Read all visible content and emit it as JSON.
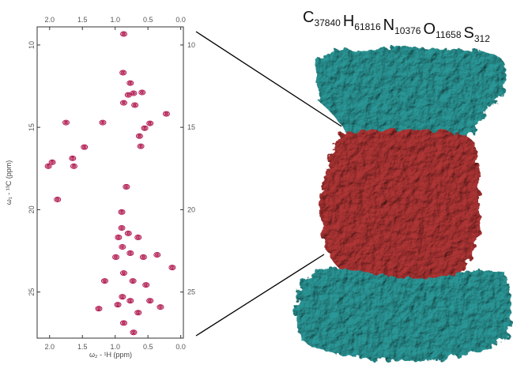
{
  "chart_data": {
    "type": "scatter",
    "x_label": "ω₂ - ¹H (ppm)",
    "y_label": "ω₁ - ¹³C (ppm)",
    "x": [
      0.87,
      0.88,
      0.77,
      0.8,
      0.72,
      0.59,
      0.87,
      0.7,
      0.55,
      0.47,
      0.63,
      0.61,
      0.22,
      1.19,
      1.75,
      1.47,
      1.65,
      2.02,
      1.96,
      1.63,
      0.83,
      1.88,
      0.9,
      0.9,
      0.8,
      0.95,
      0.65,
      0.89,
      0.77,
      0.57,
      0.99,
      0.13,
      0.36,
      0.87,
      0.73,
      0.53,
      1.16,
      0.89,
      0.77,
      0.96,
      0.47,
      0.31,
      1.25,
      0.65,
      0.87,
      0.72
    ],
    "values": [
      9.33,
      11.68,
      12.31,
      13.03,
      12.93,
      12.88,
      13.51,
      13.65,
      15.05,
      14.76,
      15.53,
      16.15,
      14.18,
      14.71,
      14.71,
      16.2,
      16.88,
      17.36,
      17.12,
      17.36,
      18.61,
      19.38,
      20.14,
      21.11,
      21.44,
      21.68,
      21.68,
      22.26,
      22.64,
      22.88,
      22.88,
      23.51,
      22.74,
      23.85,
      24.33,
      24.57,
      24.33,
      25.29,
      25.53,
      25.77,
      25.53,
      25.91,
      26.01,
      26.25,
      26.88,
      27.45
    ],
    "color": "#b0174f",
    "xlim": [
      2.19,
      -0.04
    ],
    "xticks": [
      {
        "value": 2,
        "label": "2.0"
      },
      1.5,
      {
        "value": 1,
        "label": "1.0"
      },
      0.5,
      {
        "value": 0,
        "label": "0.0"
      }
    ],
    "ylim": [
      8.9,
      27.8
    ],
    "yticks": [
      10,
      15,
      20,
      25
    ]
  },
  "formula": [
    {
      "element": "C",
      "count": 37840
    },
    {
      "element": "H",
      "count": 61816
    },
    {
      "element": "N",
      "count": 10376
    },
    {
      "element": "O",
      "count": 11658
    },
    {
      "element": "S",
      "count": 312
    }
  ]
}
